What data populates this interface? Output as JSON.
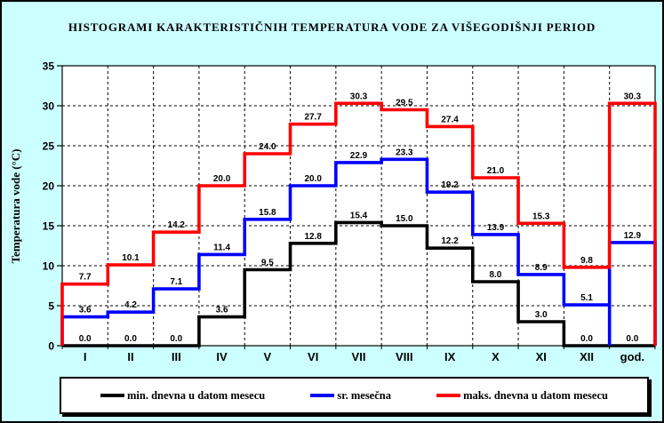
{
  "title": "HISTOGRAMI KARAKTERISTIČNIH TEMPERATURA VODE ZA VIŠEGODIŠNJI PERIOD",
  "colors": {
    "background": "#CCFFFF",
    "plot_background": "#FFFFFF",
    "grid": "#000000",
    "series_min": "#000000",
    "series_mean": "#0000FF",
    "series_max": "#FF0000"
  },
  "chart_data": {
    "type": "line",
    "subtype": "step-histogram",
    "title": "HISTOGRAMI KARAKTERISTIČNIH TEMPERATURA VODE ZA VIŠEGODIŠNJI PERIOD",
    "xlabel": "",
    "ylabel": "Temperatura vode (°C)",
    "ylim": [
      0,
      35
    ],
    "yticks": [
      0,
      5,
      10,
      15,
      20,
      25,
      30,
      35
    ],
    "grid": true,
    "legend_position": "bottom",
    "categories": [
      "I",
      "II",
      "III",
      "IV",
      "V",
      "VI",
      "VII",
      "VIII",
      "IX",
      "X",
      "XI",
      "XII",
      "god."
    ],
    "series": [
      {
        "name": "min. dnevna u datom mesecu",
        "color": "#000000",
        "values": [
          0.0,
          0.0,
          0.0,
          3.6,
          9.5,
          12.8,
          15.4,
          15.0,
          12.2,
          8.0,
          3.0,
          0.0,
          0.0
        ]
      },
      {
        "name": "sr. mesečna",
        "color": "#0000FF",
        "values": [
          3.6,
          4.2,
          7.1,
          11.4,
          15.8,
          20.0,
          22.9,
          23.3,
          19.2,
          13.9,
          8.9,
          5.1,
          12.9
        ]
      },
      {
        "name": "maks. dnevna u datom mesecu",
        "color": "#FF0000",
        "values": [
          7.7,
          10.1,
          14.2,
          20.0,
          24.0,
          27.7,
          30.3,
          29.5,
          27.4,
          21.0,
          15.3,
          9.8,
          30.3
        ]
      }
    ]
  }
}
